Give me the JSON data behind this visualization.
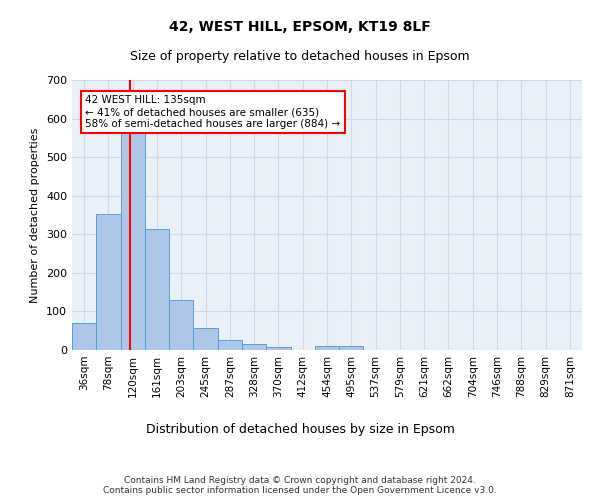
{
  "title_line1": "42, WEST HILL, EPSOM, KT19 8LF",
  "title_line2": "Size of property relative to detached houses in Epsom",
  "xlabel": "Distribution of detached houses by size in Epsom",
  "ylabel": "Number of detached properties",
  "footnote": "Contains HM Land Registry data © Crown copyright and database right 2024.\nContains public sector information licensed under the Open Government Licence v3.0.",
  "bar_labels": [
    "36sqm",
    "78sqm",
    "120sqm",
    "161sqm",
    "203sqm",
    "245sqm",
    "287sqm",
    "328sqm",
    "370sqm",
    "412sqm",
    "454sqm",
    "495sqm",
    "537sqm",
    "579sqm",
    "621sqm",
    "662sqm",
    "704sqm",
    "746sqm",
    "788sqm",
    "829sqm",
    "871sqm"
  ],
  "bar_values": [
    70,
    353,
    571,
    315,
    130,
    57,
    25,
    15,
    7,
    0,
    10,
    10,
    0,
    0,
    0,
    0,
    0,
    0,
    0,
    0,
    0
  ],
  "bar_color": "#aec6e8",
  "bar_edge_color": "#5a9fd4",
  "bar_width": 1.0,
  "ylim": [
    0,
    700
  ],
  "yticks": [
    0,
    100,
    200,
    300,
    400,
    500,
    600,
    700
  ],
  "red_line_x": 2.37,
  "annotation_box_text": "42 WEST HILL: 135sqm\n← 41% of detached houses are smaller (635)\n58% of semi-detached houses are larger (884) →",
  "grid_color": "#d0d8e8",
  "background_color": "#eaf0f8",
  "title1_fontsize": 10,
  "title2_fontsize": 9,
  "ylabel_fontsize": 8,
  "xlabel_fontsize": 9,
  "tick_fontsize": 7.5,
  "footnote_fontsize": 6.5
}
